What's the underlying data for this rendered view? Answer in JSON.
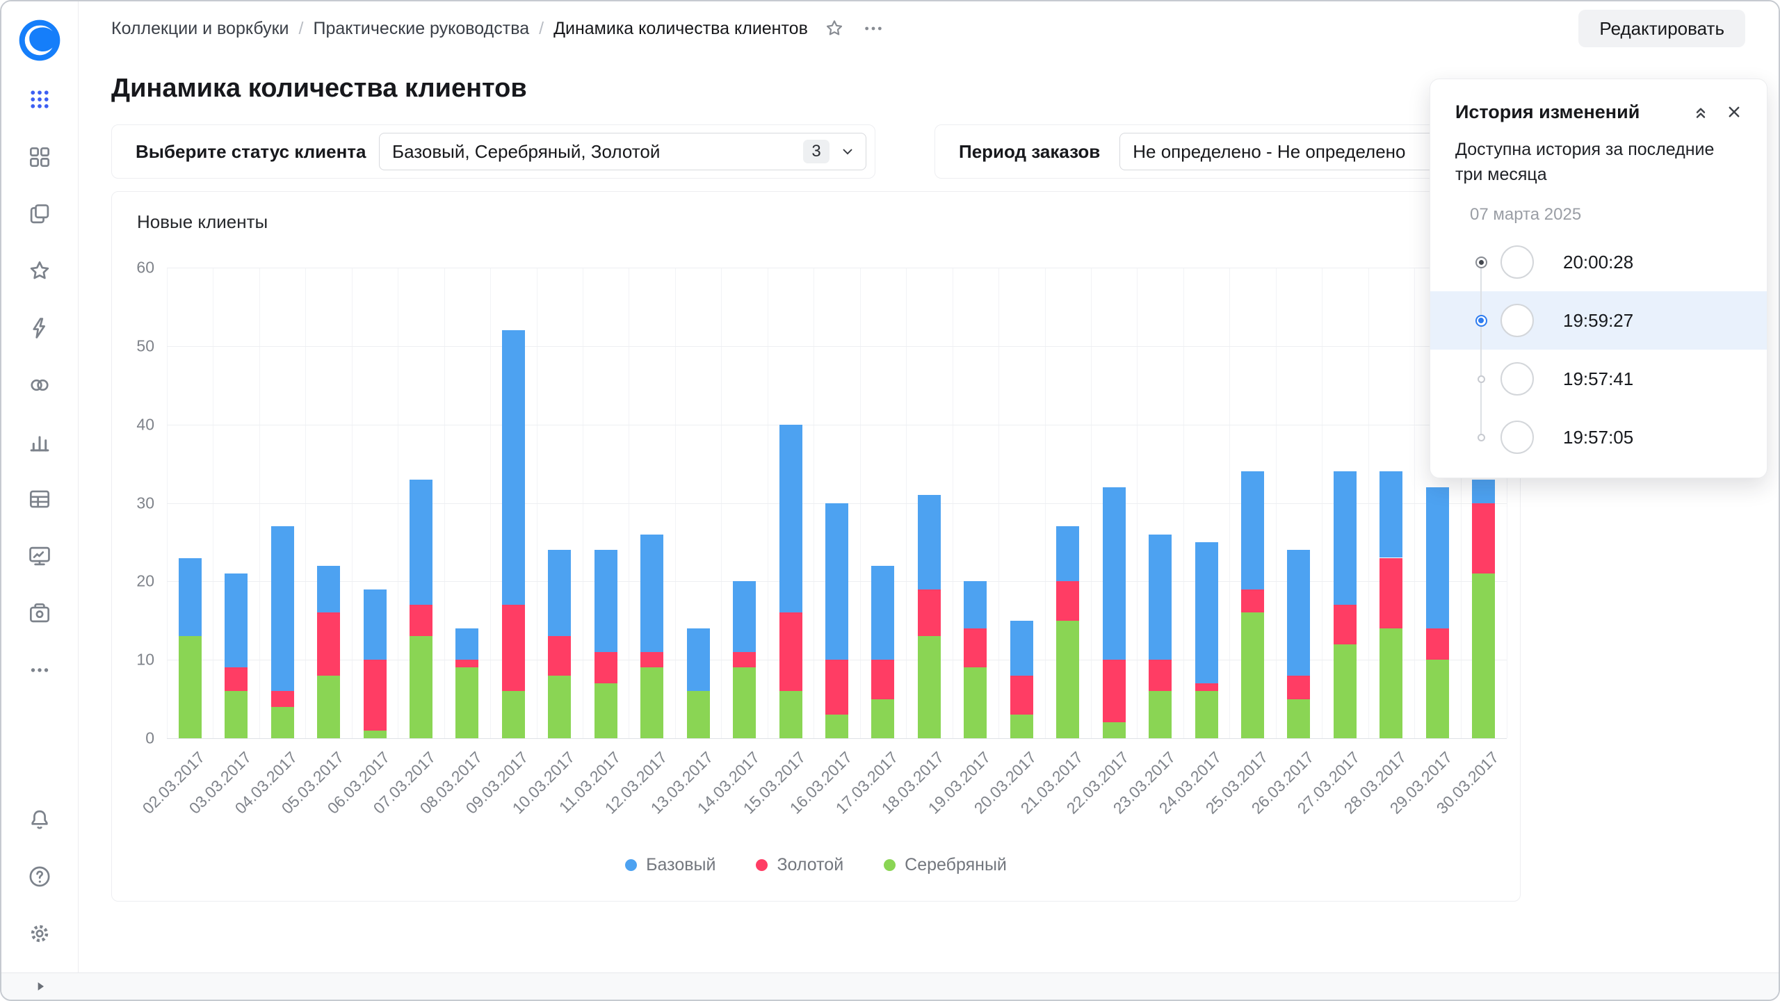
{
  "header": {
    "breadcrumbs": [
      "Коллекции и воркбуки",
      "Практические руководства",
      "Динамика количества клиентов"
    ],
    "edit_button": "Редактировать"
  },
  "page": {
    "title": "Динамика количества клиентов"
  },
  "filters": {
    "status": {
      "label": "Выберите статус клиента",
      "value": "Базовый, Серебряный, Золотой",
      "count_badge": "3"
    },
    "period": {
      "label": "Период заказов",
      "value": "Не определено - Не определено"
    }
  },
  "history_panel": {
    "title": "История изменений",
    "subtitle": "Доступна история за последние три месяца",
    "date": "07 марта 2025",
    "entries": [
      {
        "time": "20:00:28",
        "state": "current"
      },
      {
        "time": "19:59:27",
        "state": "selected"
      },
      {
        "time": "19:57:41",
        "state": "normal"
      },
      {
        "time": "19:57:05",
        "state": "normal"
      }
    ]
  },
  "sidebar": {
    "icons": [
      "datalens-logo",
      "apps-grid",
      "collections",
      "workbooks",
      "favorites",
      "editor",
      "datasets",
      "charts",
      "tables",
      "dashboards",
      "storage",
      "more",
      "notifications",
      "help",
      "settings",
      "expand"
    ]
  },
  "chart_data": {
    "type": "bar",
    "stacked": true,
    "title": "Новые клиенты",
    "categories": [
      "02.03.2017",
      "03.03.2017",
      "04.03.2017",
      "05.03.2017",
      "06.03.2017",
      "07.03.2017",
      "08.03.2017",
      "09.03.2017",
      "10.03.2017",
      "11.03.2017",
      "12.03.2017",
      "13.03.2017",
      "14.03.2017",
      "15.03.2017",
      "16.03.2017",
      "17.03.2017",
      "18.03.2017",
      "19.03.2017",
      "20.03.2017",
      "21.03.2017",
      "22.03.2017",
      "23.03.2017",
      "24.03.2017",
      "25.03.2017",
      "26.03.2017",
      "27.03.2017",
      "28.03.2017",
      "29.03.2017",
      "30.03.2017"
    ],
    "series": [
      {
        "name": "Базовый",
        "color": "#4DA2F1",
        "values": [
          10,
          12,
          21,
          6,
          9,
          16,
          4,
          35,
          11,
          13,
          15,
          8,
          9,
          24,
          20,
          12,
          12,
          6,
          7,
          7,
          22,
          16,
          18,
          15,
          16,
          17,
          11,
          18,
          3
        ]
      },
      {
        "name": "Золотой",
        "color": "#FF3D64",
        "values": [
          0,
          3,
          2,
          8,
          9,
          4,
          1,
          11,
          5,
          4,
          2,
          0,
          2,
          10,
          7,
          5,
          6,
          5,
          5,
          5,
          8,
          4,
          1,
          3,
          3,
          5,
          9,
          4,
          9
        ]
      },
      {
        "name": "Серебряный",
        "color": "#8AD554",
        "values": [
          13,
          6,
          4,
          8,
          1,
          13,
          9,
          6,
          8,
          7,
          9,
          6,
          9,
          6,
          3,
          5,
          13,
          9,
          3,
          15,
          2,
          6,
          6,
          16,
          5,
          12,
          14,
          10,
          21
        ]
      }
    ],
    "stack_order_bottom_to_top": [
      "Серебряный",
      "Золотой",
      "Базовый"
    ],
    "ylim": [
      0,
      60
    ],
    "yticks": [
      0,
      10,
      20,
      30,
      40,
      50,
      60
    ],
    "xlabel": "",
    "ylabel": "",
    "grid": true,
    "legend_position": "bottom"
  }
}
